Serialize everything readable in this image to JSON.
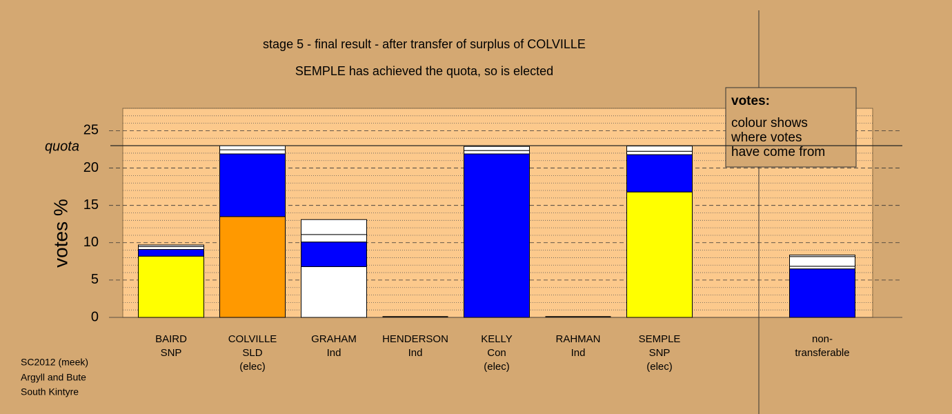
{
  "chart_data": {
    "type": "stacked-bar",
    "title": "stage 5 - final result - after transfer of surplus of COLVILLE",
    "subtitle": "SEMPLE has achieved the quota, so is elected",
    "y_label": "votes %",
    "categories": [
      [
        "BAIRD",
        "SNP"
      ],
      [
        "COLVILLE",
        "SLD",
        "(elec)"
      ],
      [
        "GRAHAM",
        "Ind"
      ],
      [
        "HENDERSON",
        "Ind"
      ],
      [
        "KELLY",
        "Con",
        "(elec)"
      ],
      [
        "RAHMAN",
        "Ind"
      ],
      [
        "SEMPLE",
        "SNP",
        "(elec)"
      ],
      null,
      [
        "non-",
        "transferable"
      ]
    ],
    "stacks": [
      [
        {
          "color": "#ffff00",
          "value": 8.2
        },
        {
          "color": "#0000ff",
          "value": 0.9
        },
        {
          "color": "#ffffff",
          "value": 0.4
        },
        {
          "color": "#ffffff",
          "value": 0.2
        }
      ],
      [
        {
          "color": "#ff9900",
          "value": 13.5
        },
        {
          "color": "#0000ff",
          "value": 8.4
        },
        {
          "color": "#ffffff",
          "value": 0.55
        },
        {
          "color": "#ffffff",
          "value": 0.55
        }
      ],
      [
        {
          "color": "#ffffff",
          "value": 6.8
        },
        {
          "color": "#0000ff",
          "value": 3.3
        },
        {
          "color": "#ffffff",
          "value": 1.0
        },
        {
          "color": "#ffffff",
          "value": 2.0
        }
      ],
      [],
      [
        {
          "color": "#0000ff",
          "value": 21.9
        },
        {
          "color": "#ffffff",
          "value": 0.45
        },
        {
          "color": "#ffffff",
          "value": 0.55
        }
      ],
      [],
      [
        {
          "color": "#ffff00",
          "value": 16.8
        },
        {
          "color": "#0000ff",
          "value": 5.0
        },
        {
          "color": "#ffffff",
          "value": 0.45
        },
        {
          "color": "#ffffff",
          "value": 0.7
        }
      ],
      [],
      [
        {
          "color": "#0000ff",
          "value": 6.5
        },
        {
          "color": "#ffffff",
          "value": 0.35
        },
        {
          "color": "#ffffff",
          "value": 1.3
        },
        {
          "color": "#ffffff",
          "value": 0.2
        }
      ]
    ],
    "ylim": [
      0,
      28
    ],
    "yticks": [
      0,
      5,
      10,
      15,
      20,
      25
    ],
    "minor_yticks": [
      1,
      2,
      3,
      4,
      6,
      7,
      8,
      9,
      11,
      12,
      13,
      14,
      16,
      17,
      18,
      19,
      21,
      22,
      23,
      24,
      26,
      27,
      28
    ],
    "quota": {
      "value": 23,
      "label": "quota"
    },
    "legend": {
      "title": "votes:",
      "lines": [
        "colour shows",
        "where votes",
        "have come from"
      ]
    }
  },
  "footer": [
    "SC2012 (meek)",
    "Argyll and Bute",
    "South Kintyre"
  ]
}
